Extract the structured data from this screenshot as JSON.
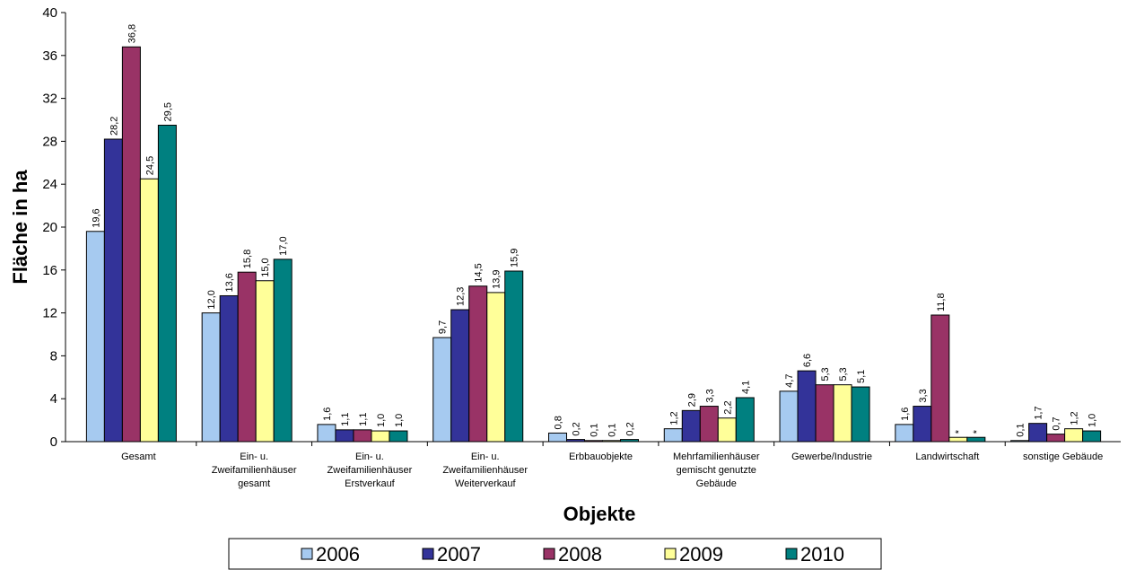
{
  "chart_data": {
    "type": "bar",
    "x_label": "Objekte",
    "y_label": "Fläche in ha",
    "categories": [
      [
        "Gesamt"
      ],
      [
        "Ein- u.",
        "Zweifamilienhäuser",
        "gesamt"
      ],
      [
        "Ein- u.",
        "Zweifamilienhäuser",
        "Erstverkauf"
      ],
      [
        "Ein- u.",
        "Zweifamilienhäuser",
        "Weiterverkauf"
      ],
      [
        "Erbbauobjekte"
      ],
      [
        "Mehrfamilienhäuser",
        "gemischt genutzte",
        "Gebäude"
      ],
      [
        "Gewerbe/Industrie"
      ],
      [
        "Landwirtschaft"
      ],
      [
        "sonstige Gebäude"
      ]
    ],
    "series": [
      {
        "name": "2006",
        "color": "#a6caf0",
        "values": [
          19.6,
          12.0,
          1.6,
          9.7,
          0.8,
          1.2,
          4.7,
          1.6,
          0.1
        ],
        "value_labels": [
          "19,6",
          "12,0",
          "1,6",
          "9,7",
          "0,8",
          "1,2",
          "4,7",
          "1,6",
          "0,1"
        ]
      },
      {
        "name": "2007",
        "color": "#333399",
        "values": [
          28.2,
          13.6,
          1.1,
          12.3,
          0.2,
          2.9,
          6.6,
          3.3,
          1.7
        ],
        "value_labels": [
          "28,2",
          "13,6",
          "1,1",
          "12,3",
          "0,2",
          "2,9",
          "6,6",
          "3,3",
          "1,7"
        ]
      },
      {
        "name": "2008",
        "color": "#993366",
        "values": [
          36.8,
          15.8,
          1.1,
          14.5,
          0.1,
          3.3,
          5.3,
          11.8,
          0.7
        ],
        "value_labels": [
          "36,8",
          "15,8",
          "1,1",
          "14,5",
          "0,1",
          "3,3",
          "5,3",
          "11,8",
          "0,7"
        ]
      },
      {
        "name": "2009",
        "color": "#ffff99",
        "values": [
          24.5,
          15.0,
          1.0,
          13.9,
          0.1,
          2.2,
          5.3,
          0.4,
          1.2
        ],
        "value_labels": [
          "24,5",
          "15,0",
          "1,0",
          "13,9",
          "0,1",
          "2,2",
          "5,3",
          "*",
          "1,2"
        ]
      },
      {
        "name": "2010",
        "color": "#008080",
        "values": [
          29.5,
          17.0,
          1.0,
          15.9,
          0.2,
          4.1,
          5.1,
          0.4,
          1.0
        ],
        "value_labels": [
          "29,5",
          "17,0",
          "1,0",
          "15,9",
          "0,2",
          "4,1",
          "5,1",
          "*",
          "1,0"
        ]
      }
    ],
    "ylim": [
      0,
      40
    ],
    "yticks": [
      0,
      4,
      8,
      12,
      16,
      20,
      24,
      28,
      32,
      36,
      40
    ],
    "grid": false,
    "legend": "bottom"
  }
}
